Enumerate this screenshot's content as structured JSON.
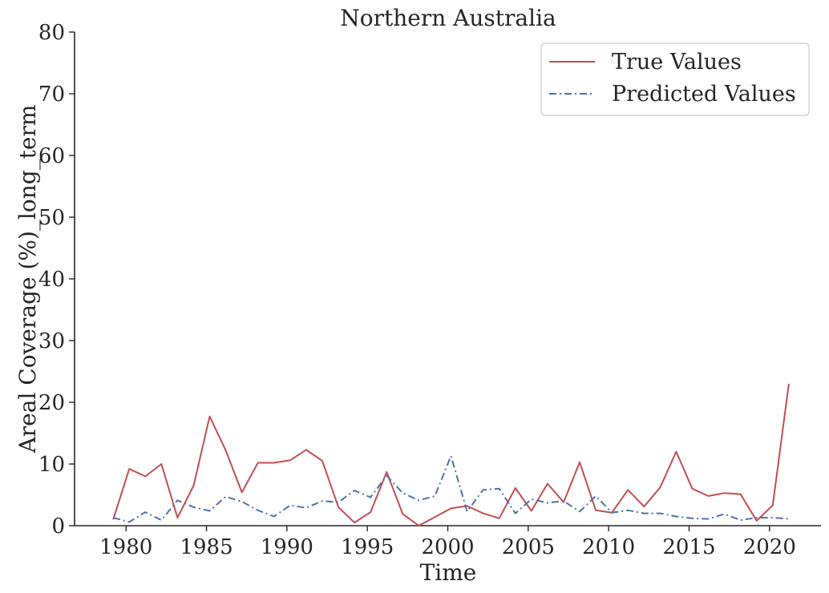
{
  "chart_data": {
    "type": "line",
    "title": "Northern Australia",
    "xlabel": "Time",
    "ylabel": "Areal Coverage (%)_long_term",
    "xlim": [
      1976.8,
      2023.2
    ],
    "ylim": [
      0,
      80
    ],
    "x_ticks": [
      1980,
      1985,
      1990,
      1995,
      2000,
      2005,
      2010,
      2015,
      2020
    ],
    "y_ticks": [
      0,
      10,
      20,
      30,
      40,
      50,
      60,
      70,
      80
    ],
    "grid": false,
    "legend_position": "top-right",
    "x": [
      1979.2,
      1980.2,
      1981.2,
      1982.2,
      1983.2,
      1984.2,
      1985.2,
      1986.2,
      1987.2,
      1988.2,
      1989.2,
      1990.2,
      1991.2,
      1992.2,
      1993.2,
      1994.2,
      1995.2,
      1996.2,
      1997.2,
      1998.2,
      1999.2,
      2000.2,
      2001.2,
      2002.2,
      2003.2,
      2004.2,
      2005.2,
      2006.2,
      2007.2,
      2008.2,
      2009.2,
      2010.2,
      2011.2,
      2012.2,
      2013.2,
      2014.2,
      2015.2,
      2016.2,
      2017.2,
      2018.2,
      2019.2,
      2020.2,
      2021.2
    ],
    "series": [
      {
        "name": "True Values",
        "color": "#c44e52",
        "line_style": "solid",
        "values": [
          1.0,
          9.2,
          8.0,
          10.0,
          1.3,
          6.5,
          17.7,
          12.2,
          5.4,
          10.2,
          10.2,
          10.6,
          12.3,
          10.5,
          3.0,
          0.5,
          2.2,
          8.7,
          1.9,
          0.0,
          1.4,
          2.8,
          3.2,
          2.0,
          1.2,
          6.1,
          2.4,
          6.8,
          3.8,
          10.3,
          2.5,
          2.1,
          5.8,
          3.1,
          6.2,
          12.0,
          6.0,
          4.8,
          5.3,
          5.1,
          0.8,
          3.3,
          23.0
        ]
      },
      {
        "name": "Predicted Values",
        "color": "#4c72b0",
        "line_style": "dashdot",
        "values": [
          1.3,
          0.6,
          2.2,
          0.9,
          4.1,
          3.0,
          2.4,
          4.7,
          3.9,
          2.5,
          1.5,
          3.3,
          2.9,
          4.0,
          3.8,
          5.7,
          4.6,
          8.1,
          5.3,
          4.1,
          4.8,
          11.3,
          2.3,
          5.8,
          6.0,
          2.0,
          4.3,
          3.7,
          4.0,
          2.3,
          4.8,
          2.1,
          2.5,
          2.0,
          2.0,
          1.5,
          1.2,
          1.1,
          1.9,
          0.9,
          1.3,
          1.3,
          1.1
        ]
      }
    ]
  }
}
